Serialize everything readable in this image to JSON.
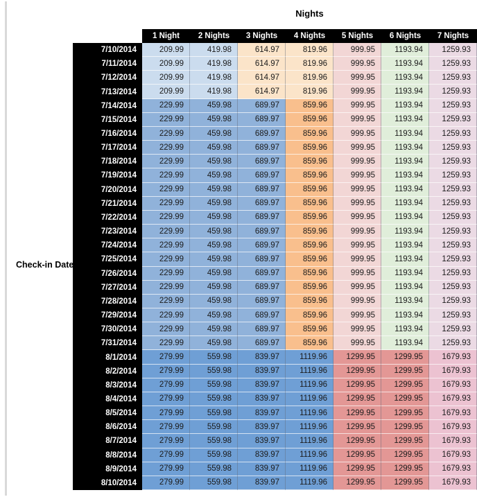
{
  "title": "Nights",
  "axis_label": "Check-in Date",
  "columns": [
    "1 Night",
    "2 Nights",
    "3 Nights",
    "4 Nights",
    "5 Nights",
    "6 Nights",
    "7 Nights"
  ],
  "colors": {
    "light_blue": "#cbdcee",
    "light_orange": "#fbe4c9",
    "med_blue": "#90b2da",
    "med_orange": "#f9bf8d",
    "light_pink": "#f2d6d5",
    "light_green": "#e0eeda",
    "light_mauve": "#ebdae4",
    "strong_blue": "#6f9fd5",
    "salmon": "#e39795",
    "pink": "#ecc2d1",
    "header_bg": "#000000",
    "header_text": "#ffffff"
  },
  "groups": {
    "early": {
      "values": [
        "209.99",
        "419.98",
        "614.97",
        "819.96",
        "999.95",
        "1193.94",
        "1259.93"
      ],
      "cell_colors": [
        "light_blue",
        "light_blue",
        "light_orange",
        "light_orange",
        "light_pink",
        "light_green",
        "light_mauve"
      ]
    },
    "mid": {
      "values": [
        "229.99",
        "459.98",
        "689.97",
        "859.96",
        "999.95",
        "1193.94",
        "1259.93"
      ],
      "cell_colors": [
        "med_blue",
        "med_blue",
        "med_blue",
        "med_orange",
        "light_pink",
        "light_green",
        "light_mauve"
      ]
    },
    "late": {
      "values": [
        "279.99",
        "559.98",
        "839.97",
        "1119.96",
        "1299.95",
        "1299.95",
        "1679.93"
      ],
      "cell_colors": [
        "strong_blue",
        "strong_blue",
        "strong_blue",
        "strong_blue",
        "salmon",
        "salmon",
        "pink"
      ]
    }
  },
  "rows": [
    {
      "date": "7/10/2014",
      "group": "early"
    },
    {
      "date": "7/11/2014",
      "group": "early"
    },
    {
      "date": "7/12/2014",
      "group": "early"
    },
    {
      "date": "7/13/2014",
      "group": "early"
    },
    {
      "date": "7/14/2014",
      "group": "mid"
    },
    {
      "date": "7/15/2014",
      "group": "mid"
    },
    {
      "date": "7/16/2014",
      "group": "mid"
    },
    {
      "date": "7/17/2014",
      "group": "mid"
    },
    {
      "date": "7/18/2014",
      "group": "mid"
    },
    {
      "date": "7/19/2014",
      "group": "mid"
    },
    {
      "date": "7/20/2014",
      "group": "mid"
    },
    {
      "date": "7/21/2014",
      "group": "mid"
    },
    {
      "date": "7/22/2014",
      "group": "mid"
    },
    {
      "date": "7/23/2014",
      "group": "mid"
    },
    {
      "date": "7/24/2014",
      "group": "mid"
    },
    {
      "date": "7/25/2014",
      "group": "mid"
    },
    {
      "date": "7/26/2014",
      "group": "mid"
    },
    {
      "date": "7/27/2014",
      "group": "mid"
    },
    {
      "date": "7/28/2014",
      "group": "mid"
    },
    {
      "date": "7/29/2014",
      "group": "mid"
    },
    {
      "date": "7/30/2014",
      "group": "mid"
    },
    {
      "date": "7/31/2014",
      "group": "mid"
    },
    {
      "date": "8/1/2014",
      "group": "late"
    },
    {
      "date": "8/2/2014",
      "group": "late"
    },
    {
      "date": "8/3/2014",
      "group": "late"
    },
    {
      "date": "8/4/2014",
      "group": "late"
    },
    {
      "date": "8/5/2014",
      "group": "late"
    },
    {
      "date": "8/6/2014",
      "group": "late"
    },
    {
      "date": "8/7/2014",
      "group": "late"
    },
    {
      "date": "8/8/2014",
      "group": "late"
    },
    {
      "date": "8/9/2014",
      "group": "late"
    },
    {
      "date": "8/10/2014",
      "group": "late"
    }
  ]
}
